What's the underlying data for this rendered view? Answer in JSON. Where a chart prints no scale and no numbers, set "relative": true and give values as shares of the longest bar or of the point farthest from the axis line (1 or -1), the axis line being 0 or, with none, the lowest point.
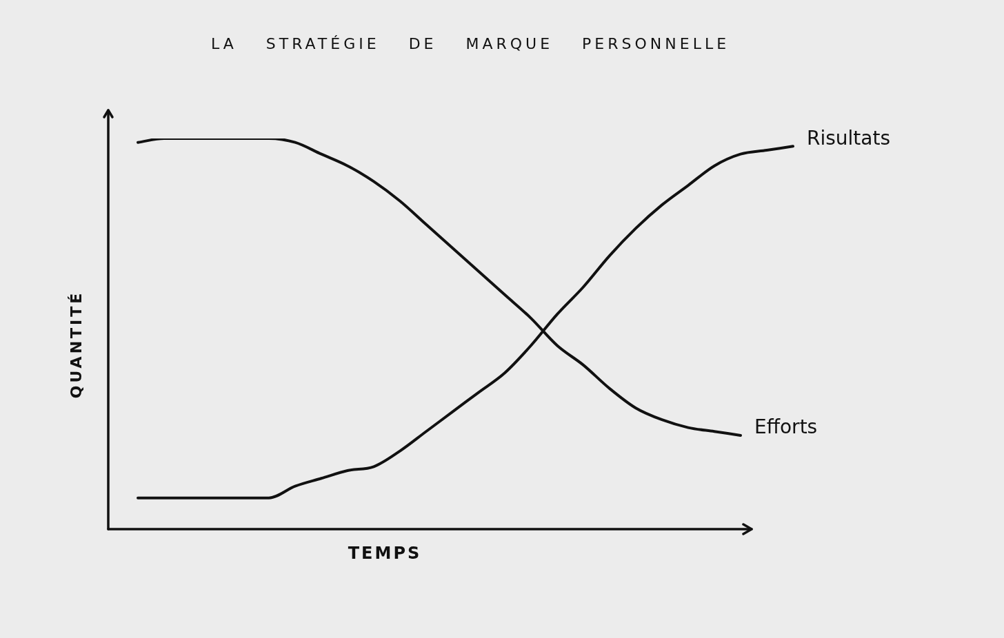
{
  "chart_data": {
    "type": "line",
    "title": "LA STRATÉGIE DE MARQUE PERSONNELLE",
    "xlabel": "TEMPS",
    "ylabel": "QUANTITÉ",
    "relative": true,
    "marker": "none",
    "line_style": "solid",
    "categories": [
      null,
      null,
      null,
      null,
      null,
      null,
      null,
      null,
      null,
      null,
      null,
      null,
      null,
      null,
      null,
      null,
      null,
      null,
      null,
      null,
      null,
      null,
      null,
      null,
      null,
      null
    ],
    "series": [
      {
        "name": "Efforts",
        "color": "#111111",
        "values": [
          0.99,
          1.0,
          1.0,
          1.0,
          1.0,
          1.0,
          0.99,
          0.96,
          0.93,
          0.89,
          0.84,
          0.78,
          0.72,
          0.66,
          0.6,
          0.54,
          0.47,
          0.42,
          0.36,
          0.31,
          0.28,
          0.26,
          0.25,
          0.24,
          null,
          null
        ]
      },
      {
        "name": "Risultats",
        "color": "#111111",
        "values": [
          0.08,
          0.08,
          0.08,
          0.08,
          0.08,
          0.08,
          0.11,
          0.13,
          0.15,
          0.16,
          0.2,
          0.25,
          0.3,
          0.35,
          0.4,
          0.47,
          0.55,
          0.62,
          0.7,
          0.77,
          0.83,
          0.88,
          0.93,
          0.96,
          0.97,
          0.98
        ]
      }
    ]
  }
}
